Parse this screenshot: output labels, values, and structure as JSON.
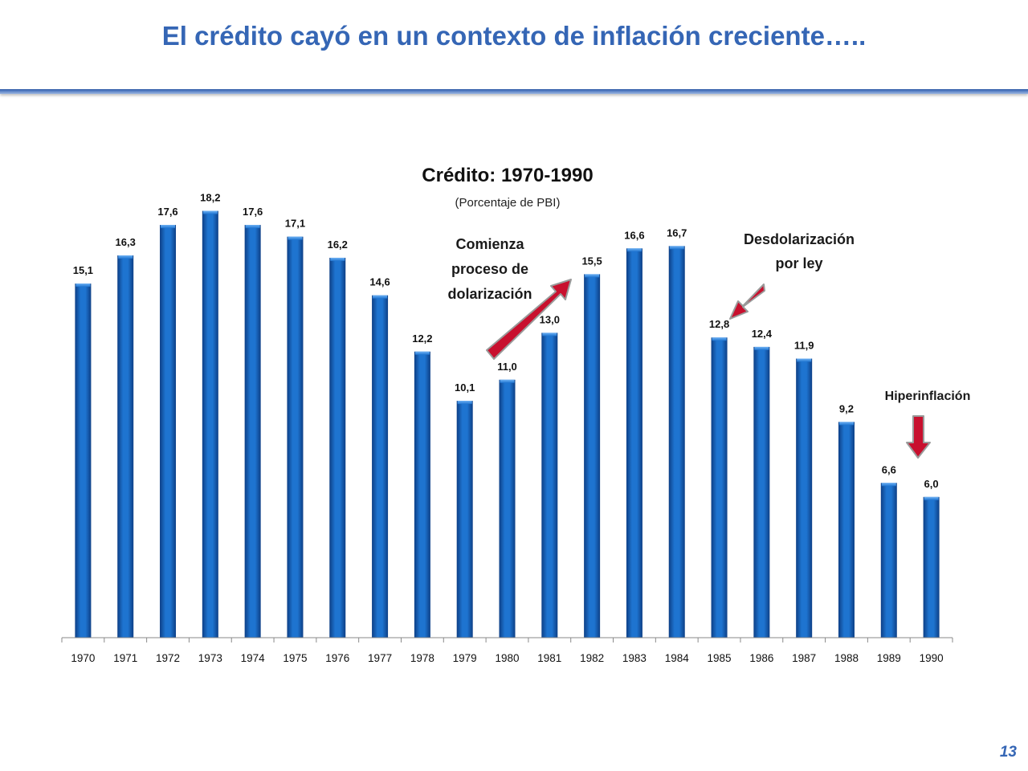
{
  "slide": {
    "title": "El crédito cayó en un contexto de inflación creciente…..",
    "page_number": "13"
  },
  "colors": {
    "title": "#3566b5",
    "bar": "#1565c0",
    "arrow": "#c8102e"
  },
  "chart_data": {
    "type": "bar",
    "title": "Crédito: 1970-1990",
    "subtitle": "(Porcentaje de PBI)",
    "xlabel": "",
    "ylabel": "",
    "ylim": [
      0,
      20
    ],
    "grid": false,
    "categories": [
      "1970",
      "1971",
      "1972",
      "1973",
      "1974",
      "1975",
      "1976",
      "1977",
      "1978",
      "1979",
      "1980",
      "1981",
      "1982",
      "1983",
      "1984",
      "1985",
      "1986",
      "1987",
      "1988",
      "1989",
      "1990"
    ],
    "values": [
      15.1,
      16.3,
      17.6,
      18.2,
      17.6,
      17.1,
      16.2,
      14.6,
      12.2,
      10.1,
      11.0,
      13.0,
      15.5,
      16.6,
      16.7,
      12.8,
      12.4,
      11.9,
      9.2,
      6.6,
      6.0
    ],
    "value_labels": [
      "15,1",
      "16,3",
      "17,6",
      "18,2",
      "17,6",
      "17,1",
      "16,2",
      "14,6",
      "12,2",
      "10,1",
      "11,0",
      "13,0",
      "15,5",
      "16,6",
      "16,7",
      "12,8",
      "12,4",
      "11,9",
      "9,2",
      "6,6",
      "6,0"
    ],
    "annotations": [
      {
        "id": "dolarizacion",
        "lines": [
          "Comienza",
          "proceso de",
          "dolarización"
        ],
        "direction": "up-right"
      },
      {
        "id": "desdolarizacion",
        "lines": [
          "Desdolarización",
          "por ley"
        ],
        "direction": "down-left"
      },
      {
        "id": "hiperinflacion",
        "lines": [
          "Hiperinflación"
        ],
        "direction": "down"
      }
    ]
  }
}
